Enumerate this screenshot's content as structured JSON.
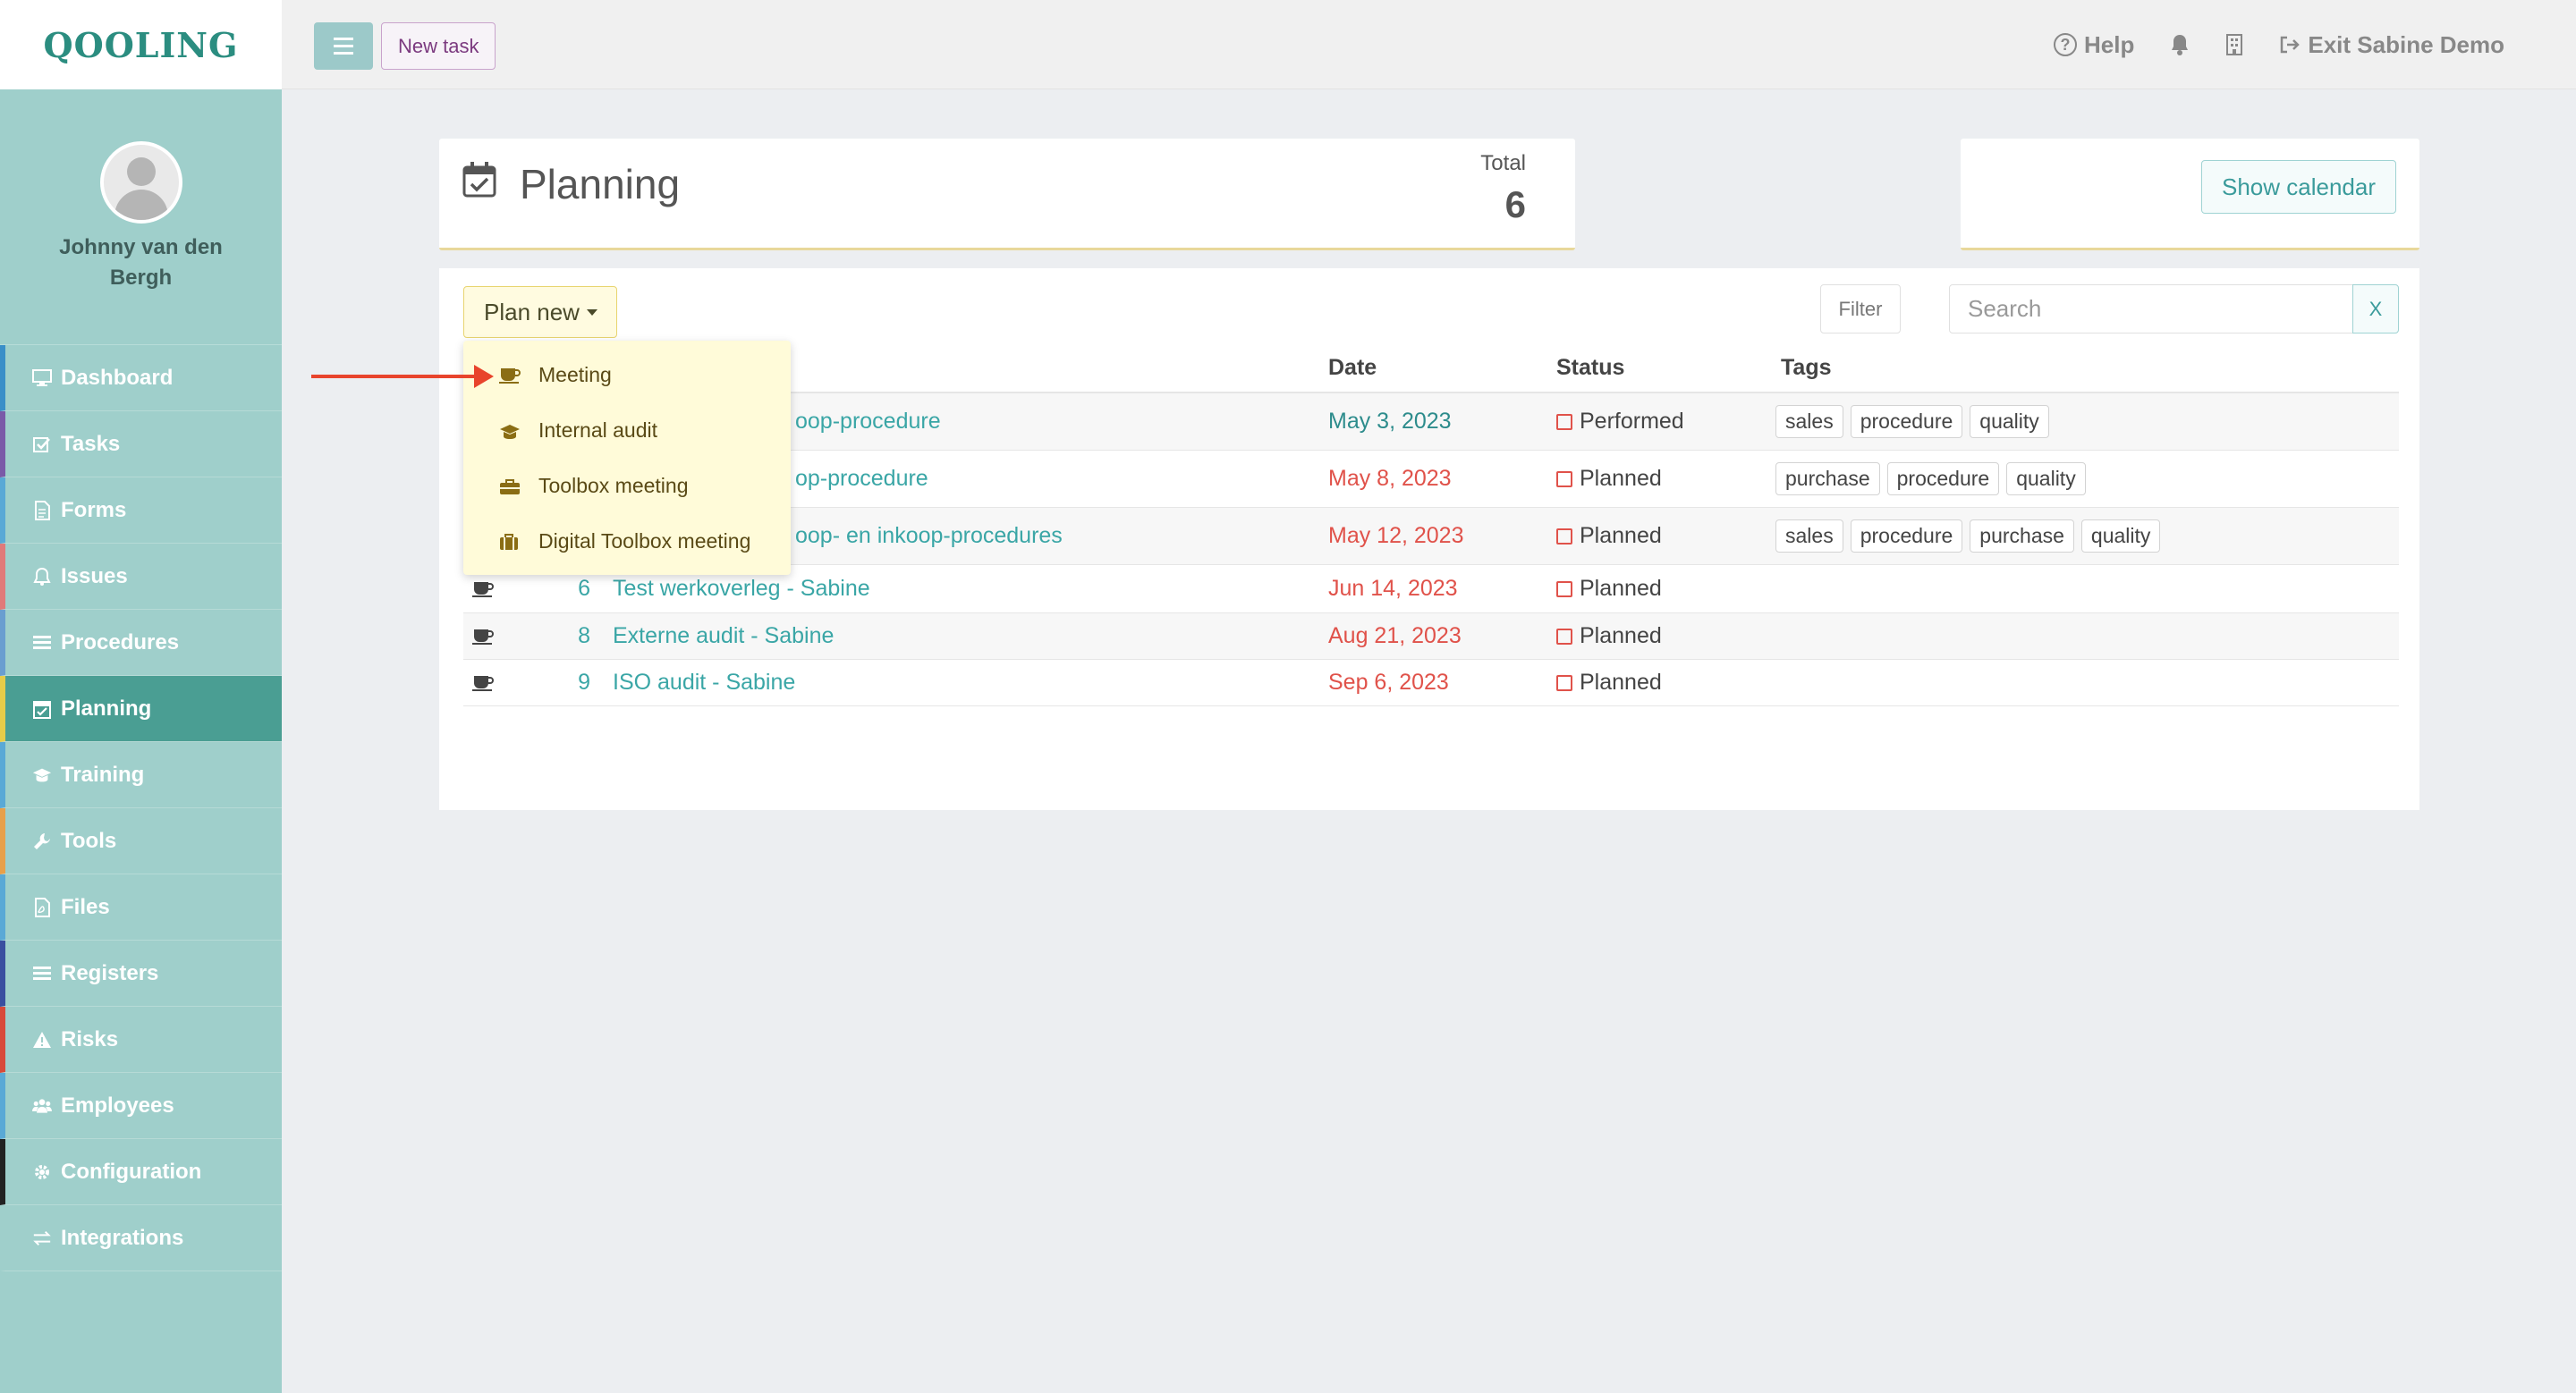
{
  "brand": {
    "logo": "QOOLING"
  },
  "user": {
    "name": "Johnny van den Bergh"
  },
  "sidebar": {
    "items": [
      {
        "label": "Dashboard",
        "icon": "monitor-icon",
        "accent": "#3a8fc8"
      },
      {
        "label": "Tasks",
        "icon": "checkbox-icon",
        "accent": "#7a5aa8"
      },
      {
        "label": "Forms",
        "icon": "document-icon",
        "accent": "#5aa9d6"
      },
      {
        "label": "Issues",
        "icon": "bell-icon",
        "accent": "#e07a7a"
      },
      {
        "label": "Procedures",
        "icon": "list-icon",
        "accent": "#6a9ed0"
      },
      {
        "label": "Planning",
        "icon": "calendar-check-icon",
        "accent": "#e6cc4a",
        "active": true
      },
      {
        "label": "Training",
        "icon": "graduation-cap-icon",
        "accent": "#5aa9d6"
      },
      {
        "label": "Tools",
        "icon": "wrench-icon",
        "accent": "#e8a04a"
      },
      {
        "label": "Files",
        "icon": "pdf-file-icon",
        "accent": "#5aa9d6"
      },
      {
        "label": "Registers",
        "icon": "list-icon",
        "accent": "#3a4fa0"
      },
      {
        "label": "Risks",
        "icon": "warning-icon",
        "accent": "#d84a3a"
      },
      {
        "label": "Employees",
        "icon": "users-icon",
        "accent": "#5aa9d6"
      },
      {
        "label": "Configuration",
        "icon": "gear-icon",
        "accent": "#222222"
      },
      {
        "label": "Integrations",
        "icon": "exchange-icon",
        "accent": "#9fcfcb"
      }
    ]
  },
  "topbar": {
    "new_task": "New task",
    "help": "Help",
    "exit": "Exit Sabine Demo"
  },
  "header": {
    "title": "Planning",
    "total_label": "Total",
    "total_value": "6"
  },
  "calendar_card": {
    "show_calendar": "Show calendar"
  },
  "toolbar": {
    "plan_new": "Plan new",
    "filter": "Filter",
    "search_placeholder": "Search",
    "search_clear": "X"
  },
  "table": {
    "headers": {
      "date": "Date",
      "status": "Status",
      "tags": "Tags"
    },
    "rows": [
      {
        "num": "",
        "title": "oop-procedure",
        "date": "May 3, 2023",
        "date_color": "teal",
        "status": "Performed",
        "tags": [
          "sales",
          "procedure",
          "quality"
        ]
      },
      {
        "num": "",
        "title": "op-procedure",
        "date": "May 8, 2023",
        "date_color": "red",
        "status": "Planned",
        "tags": [
          "purchase",
          "procedure",
          "quality"
        ]
      },
      {
        "num": "",
        "title": "oop- en inkoop-procedures",
        "date": "May 12, 2023",
        "date_color": "red",
        "status": "Planned",
        "tags": [
          "sales",
          "procedure",
          "purchase",
          "quality"
        ]
      },
      {
        "num": "6",
        "title": "Test werkoverleg - Sabine",
        "date": "Jun 14, 2023",
        "date_color": "red",
        "status": "Planned",
        "tags": []
      },
      {
        "num": "8",
        "title": "Externe audit - Sabine",
        "date": "Aug 21, 2023",
        "date_color": "red",
        "status": "Planned",
        "tags": []
      },
      {
        "num": "9",
        "title": "ISO audit - Sabine",
        "date": "Sep 6, 2023",
        "date_color": "red",
        "status": "Planned",
        "tags": []
      }
    ]
  },
  "dropdown": {
    "items": [
      {
        "label": "Meeting",
        "icon": "coffee-cup-icon"
      },
      {
        "label": "Internal audit",
        "icon": "graduation-cap-icon"
      },
      {
        "label": "Toolbox meeting",
        "icon": "toolbox-icon"
      },
      {
        "label": "Digital Toolbox meeting",
        "icon": "suitcase-icon"
      }
    ]
  }
}
